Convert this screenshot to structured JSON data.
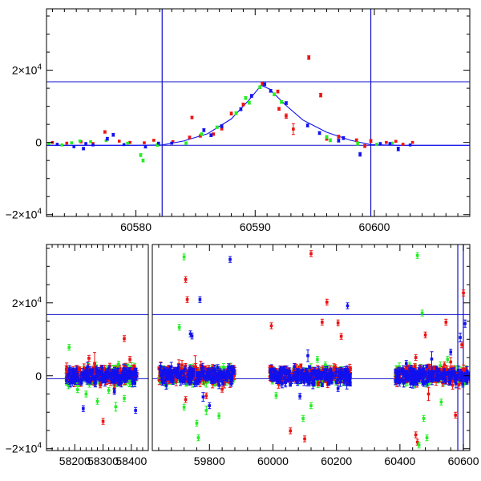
{
  "colors": {
    "red": "#ee1111",
    "green": "#22ee22",
    "blue": "#1111ee",
    "frame": "#000000",
    "guide": "#1111cc"
  },
  "chart_data": [
    {
      "type": "scatter",
      "title": "",
      "xlabel": "",
      "ylabel": "",
      "xlim": [
        60572.5,
        60608
      ],
      "ylim": [
        -20500,
        37000
      ],
      "grid": false,
      "legend": "none",
      "xticks": [
        {
          "v": 60580,
          "label": "60580"
        },
        {
          "v": 60590,
          "label": "60590"
        },
        {
          "v": 60600,
          "label": "60600"
        }
      ],
      "yticks": [
        {
          "v": -20000,
          "base": "−2×10",
          "exp": "4"
        },
        {
          "v": 0,
          "base": "0",
          "exp": ""
        },
        {
          "v": 20000,
          "base": "2×10",
          "exp": "4"
        }
      ],
      "hlines": [
        16800,
        -800
      ],
      "vlines": [
        60582.2,
        60599.7
      ],
      "model_curve": {
        "x": [
          60572.5,
          60580,
          60582.2,
          60584,
          60586,
          60588,
          60589.5,
          60590.5,
          60591.2,
          60592.5,
          60594,
          60596,
          60598,
          60599.7,
          60602,
          60608
        ],
        "y": [
          -800,
          -800,
          -700,
          400,
          2400,
          6500,
          11800,
          15800,
          14800,
          10500,
          6200,
          2800,
          600,
          -600,
          -800,
          -800
        ]
      },
      "series": [
        {
          "color": "red",
          "points": [
            [
              60573.0,
              0,
              300
            ],
            [
              60574.2,
              -200,
              300
            ],
            [
              60575.4,
              150,
              300
            ],
            [
              60576.4,
              -300,
              300
            ],
            [
              60577.4,
              2900,
              350
            ],
            [
              60578.6,
              350,
              300
            ],
            [
              60579.5,
              0,
              300
            ],
            [
              60580.7,
              -100,
              300
            ],
            [
              60581.5,
              600,
              300
            ],
            [
              60583.1,
              200,
              300
            ],
            [
              60584.5,
              1400,
              350
            ],
            [
              60584.7,
              6900,
              350
            ],
            [
              60585.4,
              1800,
              350
            ],
            [
              60586.5,
              2300,
              350
            ],
            [
              60587.2,
              3800,
              350
            ],
            [
              60588.0,
              8000,
              400
            ],
            [
              60589.0,
              10500,
              400
            ],
            [
              60590.6,
              16300,
              400
            ],
            [
              60591.9,
              14100,
              400
            ],
            [
              60592.0,
              9300,
              400
            ],
            [
              60592.6,
              7300,
              600
            ],
            [
              60593.2,
              3700,
              1500
            ],
            [
              60594.5,
              23500,
              500
            ],
            [
              60595.5,
              13100,
              500
            ],
            [
              60596.0,
              1000,
              400
            ],
            [
              60597.0,
              1600,
              400
            ],
            [
              60598.5,
              600,
              400
            ],
            [
              60599.2,
              -1000,
              400
            ],
            [
              60599.7,
              400,
              400
            ],
            [
              60601.0,
              0,
              300
            ],
            [
              60601.8,
              300,
              300
            ],
            [
              60602.4,
              -500,
              300
            ],
            [
              60603.2,
              0,
              300
            ]
          ]
        },
        {
          "color": "green",
          "points": [
            [
              60572.7,
              -300,
              300
            ],
            [
              60573.8,
              -700,
              300
            ],
            [
              60574.6,
              -100,
              300
            ],
            [
              60575.3,
              400,
              300
            ],
            [
              60576.2,
              200,
              300
            ],
            [
              60577.5,
              500,
              300
            ],
            [
              60579.3,
              -200,
              300
            ],
            [
              60580.4,
              -3500,
              400
            ],
            [
              60580.6,
              -5000,
              400
            ],
            [
              60581.8,
              -700,
              400
            ],
            [
              60584.2,
              -200,
              350
            ],
            [
              60585.5,
              2300,
              350
            ],
            [
              60586.8,
              4200,
              350
            ],
            [
              60588.4,
              8100,
              400
            ],
            [
              60589.2,
              12300,
              400
            ],
            [
              60589.5,
              11000,
              400
            ],
            [
              60590.4,
              15300,
              400
            ],
            [
              60591.6,
              13300,
              400
            ],
            [
              60592.2,
              11200,
              400
            ],
            [
              60596.0,
              1500,
              400
            ],
            [
              60596.3,
              600,
              400
            ],
            [
              60598.6,
              -300,
              400
            ],
            [
              60600.2,
              -500,
              300
            ],
            [
              60601.5,
              -200,
              300
            ]
          ]
        },
        {
          "color": "blue",
          "points": [
            [
              60573.4,
              -500,
              300
            ],
            [
              60574.8,
              -1200,
              300
            ],
            [
              60575.6,
              -1700,
              350
            ],
            [
              60575.8,
              -300,
              300
            ],
            [
              60576.4,
              -700,
              300
            ],
            [
              60577.6,
              1000,
              400
            ],
            [
              60578.1,
              2100,
              400
            ],
            [
              60579.0,
              -600,
              300
            ],
            [
              60580.8,
              -1200,
              350
            ],
            [
              60581.9,
              -200,
              300
            ],
            [
              60583.0,
              -200,
              300
            ],
            [
              60585.7,
              3400,
              400
            ],
            [
              60586.3,
              2000,
              400
            ],
            [
              60587.2,
              4500,
              400
            ],
            [
              60588.8,
              9200,
              400
            ],
            [
              60589.7,
              12900,
              400
            ],
            [
              60590.8,
              16100,
              400
            ],
            [
              60591.3,
              14300,
              400
            ],
            [
              60592.6,
              10900,
              400
            ],
            [
              60594.4,
              4700,
              400
            ],
            [
              60595.4,
              2600,
              400
            ],
            [
              60597.0,
              500,
              400
            ],
            [
              60597.4,
              1200,
              400
            ],
            [
              60598.8,
              -3300,
              500
            ],
            [
              60600.5,
              -300,
              300
            ],
            [
              60601.3,
              -300,
              300
            ],
            [
              60602.0,
              -1800,
              500
            ],
            [
              60603.0,
              -700,
              300
            ]
          ]
        }
      ]
    },
    {
      "type": "scatter",
      "title": "",
      "xlabel": "",
      "ylabel": "",
      "ylim": [
        -20500,
        36000
      ],
      "grid": false,
      "legend": "none",
      "broken_axis": true,
      "segments": [
        {
          "xlim": [
            58100,
            58460
          ],
          "xticks": [
            58200,
            58300,
            58400
          ]
        },
        {
          "xlim": [
            59620,
            60620
          ],
          "xticks": [
            59800,
            60000,
            60200,
            60400,
            60600
          ]
        }
      ],
      "yticks": [
        {
          "v": -20000,
          "base": "−2×10",
          "exp": "4"
        },
        {
          "v": 0,
          "base": "0",
          "exp": ""
        },
        {
          "v": 20000,
          "base": "2×10",
          "exp": "4"
        }
      ],
      "hlines": [
        16800,
        -800
      ],
      "vlines": [
        60582.2,
        60599.7
      ],
      "series": [
        {
          "color": "red",
          "points": [
            [
              58375,
              10200,
              800
            ],
            [
              58395,
              4500,
              800
            ],
            [
              58250,
              4800,
              800
            ],
            [
              58300,
              -12500,
              800
            ],
            [
              58290,
              -2500,
              800
            ],
            [
              58340,
              -3500,
              1200
            ],
            [
              58270,
              3400,
              3000
            ],
            [
              58360,
              1500,
              800
            ],
            [
              59725,
              26400,
              800
            ],
            [
              59730,
              20900,
              800
            ],
            [
              59755,
              2500,
              3000
            ],
            [
              59725,
              -6500,
              800
            ],
            [
              59790,
              -5500,
              800
            ],
            [
              59840,
              -3700,
              800
            ],
            [
              59995,
              13700,
              800
            ],
            [
              60120,
              33500,
              800
            ],
            [
              60155,
              14700,
              800
            ],
            [
              60170,
              20200,
              800
            ],
            [
              60205,
              14500,
              800
            ],
            [
              60215,
              10800,
              800
            ],
            [
              60055,
              -15100,
              800
            ],
            [
              60100,
              -17300,
              800
            ],
            [
              60450,
              5000,
              800
            ],
            [
              60480,
              11200,
              800
            ],
            [
              60545,
              14700,
              800
            ],
            [
              60490,
              -5000,
              1800
            ],
            [
              60455,
              -18200,
              800
            ],
            [
              60575,
              -10800,
              800
            ],
            [
              60600,
              22700,
              800
            ],
            [
              60595,
              8500,
              800
            ],
            [
              60560,
              3800,
              1200
            ],
            [
              60450,
              -16200,
              800
            ],
            [
              60540,
              3000,
              800
            ]
          ]
        },
        {
          "color": "green",
          "points": [
            [
              58180,
              7800,
              800
            ],
            [
              58210,
              -3800,
              800
            ],
            [
              58240,
              -5000,
              800
            ],
            [
              58280,
              -7000,
              800
            ],
            [
              58320,
              -4000,
              800
            ],
            [
              58345,
              -8500,
              1200
            ],
            [
              58375,
              -6200,
              800
            ],
            [
              58395,
              -2000,
              800
            ],
            [
              58355,
              3200,
              800
            ],
            [
              59720,
              32600,
              800
            ],
            [
              59705,
              13300,
              800
            ],
            [
              59720,
              -8600,
              800
            ],
            [
              59760,
              -13000,
              800
            ],
            [
              59765,
              -17000,
              800
            ],
            [
              59790,
              -9500,
              1200
            ],
            [
              59830,
              -11000,
              800
            ],
            [
              60010,
              -5400,
              800
            ],
            [
              60095,
              -11700,
              800
            ],
            [
              60120,
              -8200,
              800
            ],
            [
              60140,
              4500,
              800
            ],
            [
              60165,
              3000,
              800
            ],
            [
              60455,
              33000,
              800
            ],
            [
              60470,
              17200,
              800
            ],
            [
              60475,
              -11700,
              800
            ],
            [
              60460,
              -19000,
              800
            ],
            [
              60485,
              -17000,
              800
            ],
            [
              60530,
              -7200,
              800
            ],
            [
              60550,
              4500,
              800
            ]
          ]
        },
        {
          "color": "blue",
          "points": [
            [
              58230,
              -9000,
              800
            ],
            [
              58245,
              2500,
              1200
            ],
            [
              58340,
              -4300,
              800
            ],
            [
              58415,
              -9500,
              800
            ],
            [
              58280,
              0,
              1000
            ],
            [
              59770,
              20900,
              800
            ],
            [
              59745,
              10900,
              800
            ],
            [
              59740,
              11500,
              800
            ],
            [
              59865,
              31900,
              800
            ],
            [
              59780,
              -5800,
              1200
            ],
            [
              59800,
              -8200,
              800
            ],
            [
              59860,
              2500,
              800
            ],
            [
              60085,
              -5600,
              800
            ],
            [
              60110,
              5500,
              1600
            ],
            [
              60165,
              1700,
              800
            ],
            [
              60205,
              -3500,
              800
            ],
            [
              60235,
              19200,
              800
            ],
            [
              60420,
              3400,
              800
            ],
            [
              60500,
              4600,
              2000
            ],
            [
              60560,
              6500,
              800
            ],
            [
              60590,
              10500,
              1200
            ],
            [
              60605,
              14300,
              1000
            ],
            [
              60598,
              -2300,
              800
            ]
          ]
        }
      ],
      "dense_band": {
        "segments": [
          [
            58170,
            58420
          ],
          [
            59640,
            59880
          ],
          [
            59990,
            60245
          ],
          [
            60385,
            60615
          ]
        ],
        "spread": 1300,
        "errbar": 900
      }
    }
  ]
}
